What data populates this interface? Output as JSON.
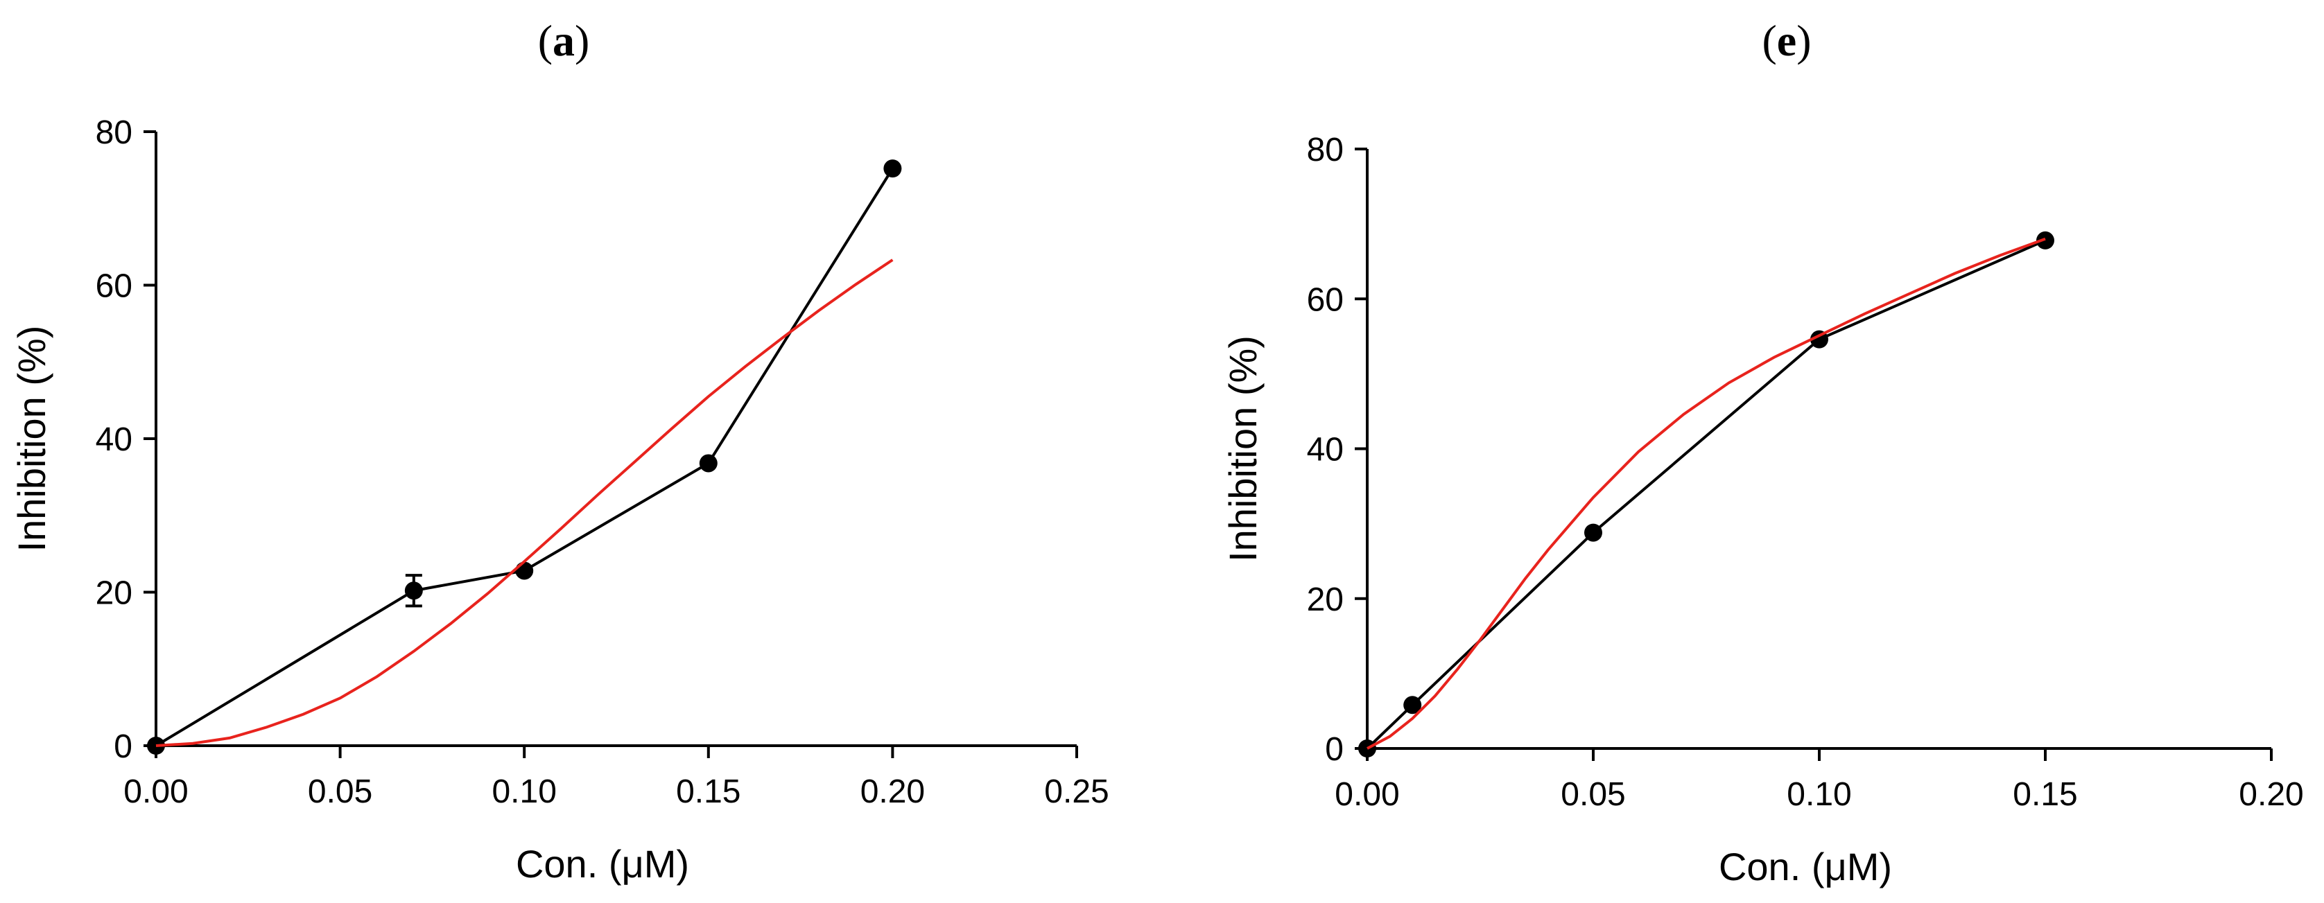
{
  "chart_data": [
    {
      "panel": "a",
      "type": "line",
      "xlabel": "Con. (μM)",
      "ylabel": "Inhibition (%)",
      "xlim": [
        0,
        0.25
      ],
      "ylim": [
        0,
        80
      ],
      "xticks": [
        "0.00",
        "0.05",
        "0.10",
        "0.15",
        "0.20",
        "0.25"
      ],
      "yticks": [
        "0",
        "20",
        "40",
        "60",
        "80"
      ],
      "series": [
        {
          "type": "line-markers",
          "color": "#000000",
          "x": [
            0,
            0.07,
            0.1,
            0.15,
            0.2
          ],
          "y": [
            0,
            20.2,
            22.8,
            36.8,
            75.2
          ],
          "yerr": [
            0,
            2.0,
            0,
            0,
            0
          ]
        },
        {
          "type": "fit-curve",
          "color": "#e8231d",
          "x": [
            0,
            0.01,
            0.02,
            0.03,
            0.04,
            0.05,
            0.06,
            0.07,
            0.08,
            0.09,
            0.1,
            0.11,
            0.12,
            0.13,
            0.14,
            0.15,
            0.16,
            0.17,
            0.18,
            0.19,
            0.2
          ],
          "y": [
            0,
            0.3,
            1.0,
            2.4,
            4.1,
            6.2,
            9.0,
            12.3,
            15.9,
            19.8,
            24.0,
            28.3,
            32.7,
            37.0,
            41.3,
            45.5,
            49.4,
            53.1,
            56.7,
            60.1,
            63.3
          ]
        }
      ]
    },
    {
      "panel": "e",
      "type": "line",
      "xlabel": "Con. (μM)",
      "ylabel": "Inhibition (%)",
      "xlim": [
        0,
        0.2
      ],
      "ylim": [
        0,
        80
      ],
      "xticks": [
        "0.00",
        "0.05",
        "0.10",
        "0.15",
        "0.20"
      ],
      "yticks": [
        "0",
        "20",
        "40",
        "60",
        "80"
      ],
      "series": [
        {
          "type": "line-markers",
          "color": "#000000",
          "x": [
            0,
            0.01,
            0.05,
            0.1,
            0.15
          ],
          "y": [
            0,
            5.8,
            28.8,
            54.6,
            67.8
          ],
          "yerr": [
            0,
            0,
            0,
            0,
            0
          ]
        },
        {
          "type": "fit-curve",
          "color": "#e8231d",
          "x": [
            0,
            0.005,
            0.01,
            0.015,
            0.02,
            0.025,
            0.03,
            0.035,
            0.04,
            0.05,
            0.06,
            0.07,
            0.08,
            0.09,
            0.1,
            0.11,
            0.12,
            0.13,
            0.14,
            0.15
          ],
          "y": [
            0,
            1.6,
            4.0,
            7.0,
            10.6,
            14.5,
            18.6,
            22.7,
            26.5,
            33.5,
            39.6,
            44.6,
            48.8,
            52.2,
            55.1,
            58.0,
            60.7,
            63.4,
            65.8,
            68.0
          ]
        }
      ]
    }
  ]
}
